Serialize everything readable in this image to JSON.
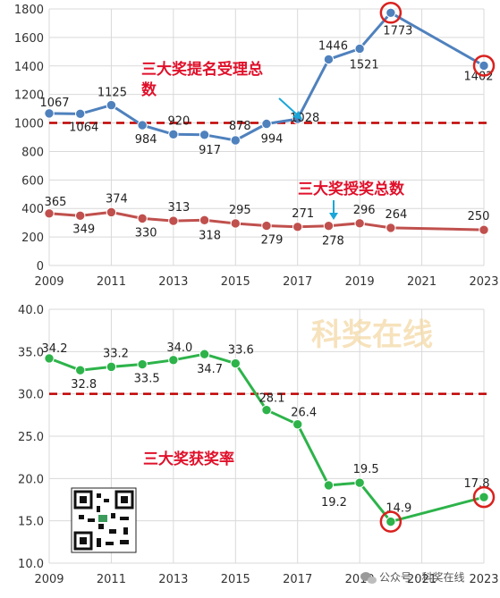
{
  "watermark": "科奖在线",
  "footer": "公众号 · 科奖在线",
  "colors": {
    "nominations": "#4f81bd",
    "awards": "#c0504d",
    "rate": "#2db34a",
    "threshold": "#c00000",
    "highlight": "#d9211e",
    "grid": "#d9d9d9",
    "annotation": "#e0102a",
    "arrow": "#1aa6d8"
  },
  "chart_data": [
    {
      "type": "line",
      "x": [
        2009,
        2010,
        2011,
        2012,
        2013,
        2014,
        2015,
        2016,
        2017,
        2018,
        2019,
        2020,
        2023
      ],
      "xticks": [
        "2009",
        "2011",
        "2013",
        "2015",
        "2017",
        "2019",
        "2021",
        "2023"
      ],
      "xlim": [
        2009,
        2023
      ],
      "ylim": [
        0,
        1800
      ],
      "yticks": [
        "0",
        "200",
        "400",
        "600",
        "800",
        "1000",
        "1200",
        "1400",
        "1600",
        "1800"
      ],
      "grid": true,
      "reference_line": 1000,
      "series": [
        {
          "name": "三大奖提名受理总数",
          "values": [
            1067,
            1064,
            1125,
            984,
            920,
            917,
            878,
            994,
            1028,
            1446,
            1521,
            1773,
            1402
          ],
          "labels": [
            "1067",
            "1064",
            "1125",
            "984",
            "920",
            "917",
            "878",
            "994",
            "1028",
            "1446",
            "1521",
            "1773",
            "1402"
          ],
          "highlighted_points": [
            2020,
            2023
          ]
        },
        {
          "name": "三大奖授奖总数",
          "values": [
            365,
            349,
            374,
            330,
            313,
            318,
            295,
            279,
            271,
            278,
            296,
            264,
            250
          ],
          "labels": [
            "365",
            "349",
            "374",
            "330",
            "313",
            "318",
            "295",
            "279",
            "271",
            "278",
            "296",
            "264",
            "250"
          ]
        }
      ]
    },
    {
      "type": "line",
      "x": [
        2009,
        2010,
        2011,
        2012,
        2013,
        2014,
        2015,
        2016,
        2017,
        2018,
        2019,
        2020,
        2023
      ],
      "xticks": [
        "2009",
        "2011",
        "2013",
        "2015",
        "2017",
        "2019",
        "2021",
        "2023"
      ],
      "xlim": [
        2009,
        2023
      ],
      "ylim": [
        10,
        40
      ],
      "yticks": [
        "10.0",
        "15.0",
        "20.0",
        "25.0",
        "30.0",
        "35.0",
        "40.0"
      ],
      "grid": true,
      "reference_line": 30,
      "series": [
        {
          "name": "三大奖获奖率",
          "values": [
            34.2,
            32.8,
            33.2,
            33.5,
            34.0,
            34.7,
            33.6,
            28.1,
            26.4,
            19.2,
            19.5,
            14.9,
            17.8
          ],
          "labels": [
            "34.2",
            "32.8",
            "33.2",
            "33.5",
            "34.0",
            "34.7",
            "33.6",
            "28.1",
            "26.4",
            "19.2",
            "19.5",
            "14.9",
            "17.8"
          ],
          "highlighted_points": [
            2020,
            2023
          ]
        }
      ]
    }
  ]
}
